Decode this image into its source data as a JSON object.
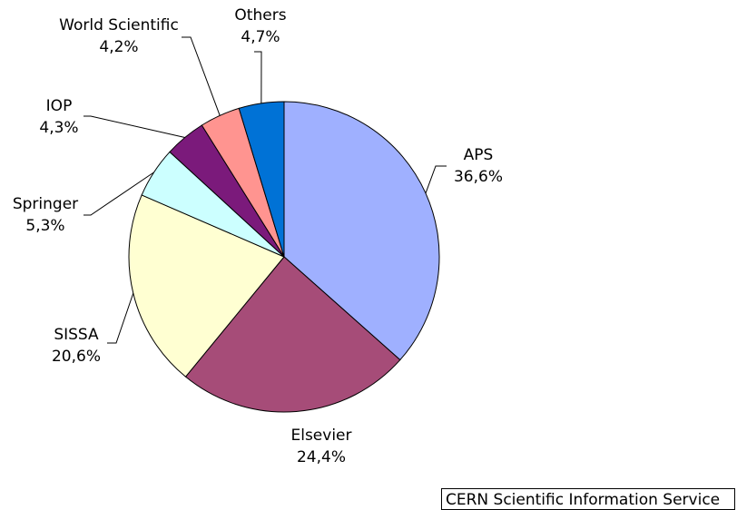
{
  "chart_data": {
    "type": "pie",
    "categories": [
      "APS",
      "Elsevier",
      "SISSA",
      "Springer",
      "IOP",
      "World Scientific",
      "Others"
    ],
    "values": [
      36.6,
      24.4,
      20.6,
      5.3,
      4.3,
      4.2,
      4.7
    ],
    "value_labels": [
      "36,6%",
      "24,4%",
      "20,6%",
      "5,3%",
      "4,3%",
      "4,2%",
      "4,7%"
    ],
    "colors": [
      "#9fb0ff",
      "#a64c78",
      "#ffffd2",
      "#ccffff",
      "#7b1a7b",
      "#ff9490",
      "#0072d6"
    ],
    "source": "CERN Scientific Information Service"
  }
}
